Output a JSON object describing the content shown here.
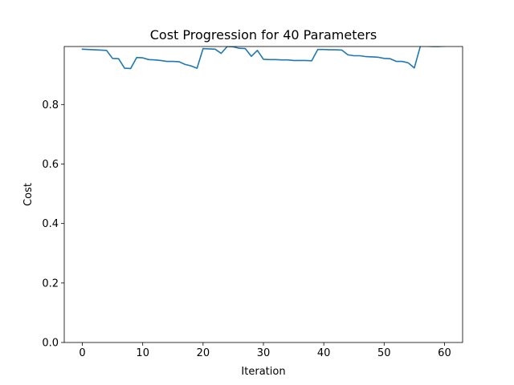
{
  "chart_data": {
    "type": "line",
    "title": "Cost Progression for 40 Parameters",
    "xlabel": "Iteration",
    "ylabel": "Cost",
    "xlim": [
      -3,
      63
    ],
    "ylim": [
      0,
      0.995
    ],
    "xticks": [
      0,
      10,
      20,
      30,
      40,
      50,
      60
    ],
    "yticks": [
      0.0,
      0.2,
      0.4,
      0.6,
      0.8
    ],
    "ytick_labels": [
      "0.0",
      "0.2",
      "0.4",
      "0.6",
      "0.8"
    ],
    "grid": false,
    "legend": "none",
    "series": [
      {
        "name": "cost",
        "color": "#1f77b4",
        "x": [
          0,
          1,
          2,
          3,
          4,
          5,
          6,
          7,
          8,
          9,
          10,
          11,
          12,
          13,
          14,
          15,
          16,
          17,
          18,
          19,
          20,
          21,
          22,
          23,
          24,
          25,
          26,
          27,
          28,
          29,
          30,
          31,
          32,
          33,
          34,
          35,
          36,
          37,
          38,
          39,
          40,
          41,
          42,
          43,
          44,
          45,
          46,
          47,
          48,
          49,
          50,
          51,
          52,
          53,
          54,
          55,
          56,
          57,
          58,
          59,
          60
        ],
        "y": [
          0.986,
          0.985,
          0.984,
          0.983,
          0.982,
          0.955,
          0.954,
          0.922,
          0.921,
          0.958,
          0.957,
          0.951,
          0.95,
          0.948,
          0.945,
          0.945,
          0.944,
          0.935,
          0.93,
          0.922,
          0.988,
          0.987,
          0.986,
          0.972,
          0.995,
          0.994,
          0.989,
          0.988,
          0.962,
          0.982,
          0.952,
          0.951,
          0.951,
          0.95,
          0.95,
          0.948,
          0.948,
          0.948,
          0.947,
          0.985,
          0.985,
          0.984,
          0.984,
          0.983,
          0.967,
          0.964,
          0.964,
          0.961,
          0.96,
          0.959,
          0.955,
          0.954,
          0.945,
          0.945,
          0.94,
          0.923,
          0.996,
          0.996,
          0.995,
          0.995,
          0.996
        ]
      }
    ]
  }
}
